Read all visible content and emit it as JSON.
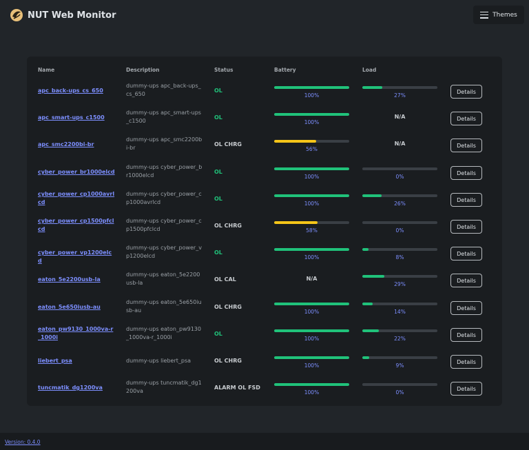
{
  "app": {
    "title": "NUT Web Monitor",
    "logo_icon": "nut-logo-icon",
    "themes_label": "Themes"
  },
  "table": {
    "headers": {
      "name": "Name",
      "description": "Description",
      "status": "Status",
      "battery": "Battery",
      "load": "Load"
    },
    "details_label": "Details",
    "rows": [
      {
        "name": "apc_back-ups_cs_650",
        "description": "dummy-ups apc_back-ups_cs_650",
        "status": "OL",
        "battery": 100,
        "battery_label": "100%",
        "load": 27,
        "load_label": "27%"
      },
      {
        "name": "apc_smart-ups_c1500",
        "description": "dummy-ups apc_smart-ups_c1500",
        "status": "OL",
        "battery": 100,
        "battery_label": "100%",
        "load": null,
        "load_label": "N/A"
      },
      {
        "name": "apc_smc2200bi-br",
        "description": "dummy-ups apc_smc2200bi-br",
        "status": "OL CHRG",
        "battery": 56,
        "battery_label": "56%",
        "load": null,
        "load_label": "N/A"
      },
      {
        "name": "cyber_power_br1000elcd",
        "description": "dummy-ups cyber_power_br1000elcd",
        "status": "OL",
        "battery": 100,
        "battery_label": "100%",
        "load": 0,
        "load_label": "0%"
      },
      {
        "name": "cyber_power_cp1000avrlcd",
        "description": "dummy-ups cyber_power_cp1000avrlcd",
        "status": "OL",
        "battery": 100,
        "battery_label": "100%",
        "load": 26,
        "load_label": "26%"
      },
      {
        "name": "cyber_power_cp1500pfclcd",
        "description": "dummy-ups cyber_power_cp1500pfclcd",
        "status": "OL CHRG",
        "battery": 58,
        "battery_label": "58%",
        "load": 0,
        "load_label": "0%"
      },
      {
        "name": "cyber_power_vp1200elcd",
        "description": "dummy-ups cyber_power_vp1200elcd",
        "status": "OL",
        "battery": 100,
        "battery_label": "100%",
        "load": 8,
        "load_label": "8%"
      },
      {
        "name": "eaton_5e2200usb-la",
        "description": "dummy-ups eaton_5e2200usb-la",
        "status": "OL CAL",
        "battery": null,
        "battery_label": "N/A",
        "load": 29,
        "load_label": "29%"
      },
      {
        "name": "eaton_5e650iusb-au",
        "description": "dummy-ups eaton_5e650iusb-au",
        "status": "OL CHRG",
        "battery": 100,
        "battery_label": "100%",
        "load": 14,
        "load_label": "14%"
      },
      {
        "name": "eaton_pw9130_1000va-r_1000i",
        "description": "dummy-ups eaton_pw9130_1000va-r_1000i",
        "status": "OL",
        "battery": 100,
        "battery_label": "100%",
        "load": 22,
        "load_label": "22%"
      },
      {
        "name": "liebert_psa",
        "description": "dummy-ups liebert_psa",
        "status": "OL CHRG",
        "battery": 100,
        "battery_label": "100%",
        "load": 9,
        "load_label": "9%"
      },
      {
        "name": "tuncmatik_dg1200va",
        "description": "dummy-ups tuncmatik_dg1200va",
        "status": "ALARM OL FSD",
        "battery": 100,
        "battery_label": "100%",
        "load": 0,
        "load_label": "0%"
      }
    ]
  },
  "footer": {
    "version": "Version: 0.4.0"
  },
  "colors": {
    "ok": "#20c27a",
    "warning_fill": "#f5c518",
    "link": "#7d8fff"
  }
}
